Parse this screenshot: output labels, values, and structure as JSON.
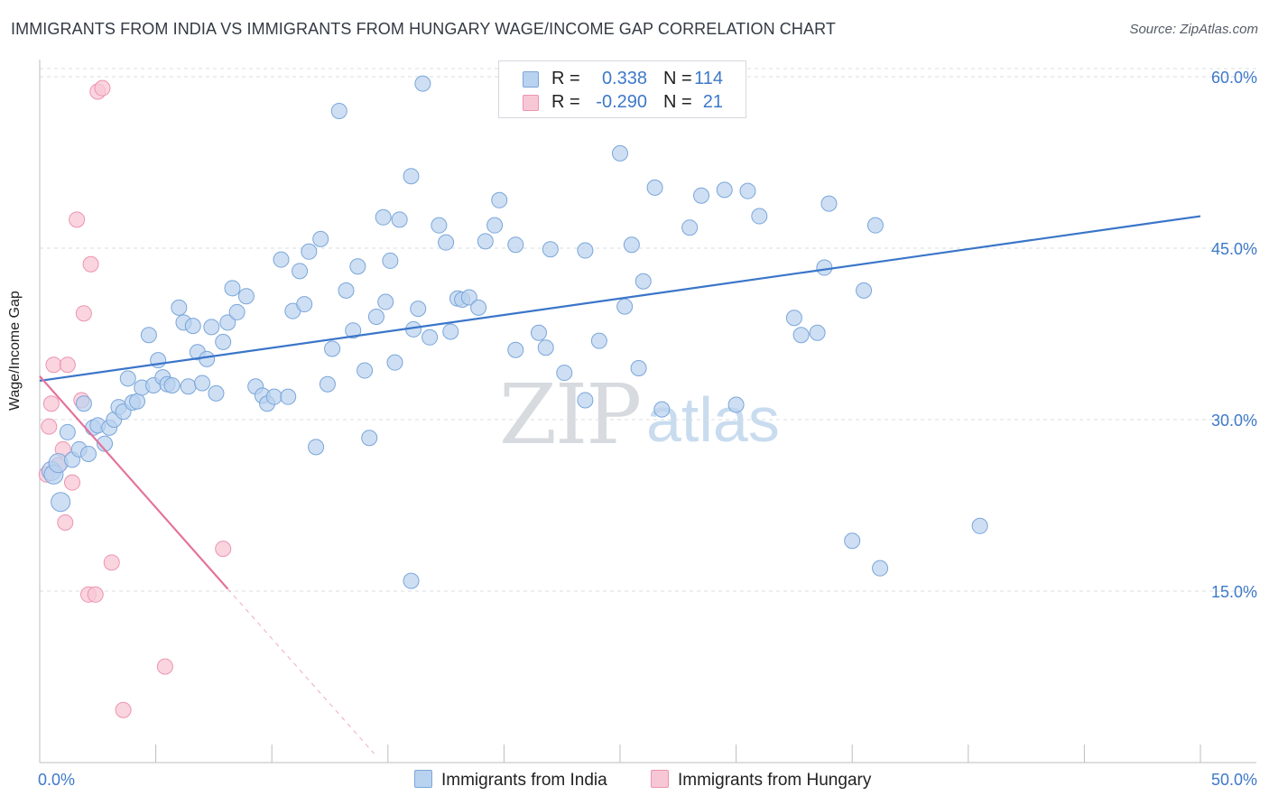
{
  "title": "IMMIGRANTS FROM INDIA VS IMMIGRANTS FROM HUNGARY WAGE/INCOME GAP CORRELATION CHART",
  "source": "Source: ZipAtlas.com",
  "watermark": {
    "zip": "ZIP",
    "atlas": "atlas"
  },
  "legend": {
    "india": {
      "r_label": "R =",
      "r_value": "0.338",
      "n_label": "N =",
      "n_value": "114"
    },
    "hungary": {
      "r_label": "R =",
      "r_value": "-0.290",
      "n_label": "N =",
      "n_value": "21"
    }
  },
  "colors": {
    "india_fill": "#b9d2f0",
    "india_stroke": "#7aa6d9",
    "india_line": "#3a75c9",
    "hungary_fill": "#f8c7d5",
    "hungary_stroke": "#ec94b0",
    "hungary_line": "#e4739b",
    "grid": "#d9dce0",
    "tick_label": "#3d79c9"
  },
  "chart_data": {
    "type": "scatter",
    "title": "IMMIGRANTS FROM INDIA VS IMMIGRANTS FROM HUNGARY WAGE/INCOME GAP CORRELATION CHART",
    "xlabel": "",
    "ylabel": "Wage/Income Gap",
    "xlim": [
      0,
      50
    ],
    "ylim": [
      0,
      61.5
    ],
    "x_tick_labels": [
      "0.0%",
      "50.0%"
    ],
    "y_ticks": [
      15,
      30,
      45,
      60
    ],
    "y_tick_labels": [
      "15.0%",
      "30.0%",
      "45.0%",
      "60.0%"
    ],
    "grid": true,
    "legend_position": "bottom",
    "series": [
      {
        "name": "Immigrants from India",
        "trend": {
          "x0": 0,
          "y0": 33.4,
          "x1": 50,
          "y1": 47.8
        },
        "points": [
          [
            0.5,
            25.5
          ],
          [
            0.6,
            25.2
          ],
          [
            0.8,
            26.2
          ],
          [
            0.9,
            22.8
          ],
          [
            1.2,
            28.9
          ],
          [
            1.4,
            26.5
          ],
          [
            1.7,
            27.4
          ],
          [
            1.9,
            31.4
          ],
          [
            2.1,
            27.0
          ],
          [
            2.3,
            29.3
          ],
          [
            2.5,
            29.5
          ],
          [
            2.8,
            27.9
          ],
          [
            3.0,
            29.3
          ],
          [
            3.2,
            30.0
          ],
          [
            3.4,
            31.1
          ],
          [
            3.6,
            30.7
          ],
          [
            3.8,
            33.6
          ],
          [
            4.0,
            31.5
          ],
          [
            4.2,
            31.6
          ],
          [
            4.4,
            32.8
          ],
          [
            4.7,
            37.4
          ],
          [
            4.9,
            33.0
          ],
          [
            5.1,
            35.2
          ],
          [
            5.3,
            33.7
          ],
          [
            5.5,
            33.1
          ],
          [
            5.7,
            33.0
          ],
          [
            6.0,
            39.8
          ],
          [
            6.2,
            38.5
          ],
          [
            6.4,
            32.9
          ],
          [
            6.6,
            38.2
          ],
          [
            6.8,
            35.9
          ],
          [
            7.0,
            33.2
          ],
          [
            7.2,
            35.3
          ],
          [
            7.4,
            38.1
          ],
          [
            7.6,
            32.3
          ],
          [
            7.9,
            36.8
          ],
          [
            8.1,
            38.5
          ],
          [
            8.3,
            41.5
          ],
          [
            8.5,
            39.4
          ],
          [
            8.9,
            40.8
          ],
          [
            9.3,
            32.9
          ],
          [
            9.6,
            32.1
          ],
          [
            9.8,
            31.4
          ],
          [
            10.1,
            32.0
          ],
          [
            10.4,
            44.0
          ],
          [
            10.7,
            32.0
          ],
          [
            10.9,
            39.5
          ],
          [
            11.2,
            43.0
          ],
          [
            11.4,
            40.1
          ],
          [
            11.6,
            44.7
          ],
          [
            11.9,
            27.6
          ],
          [
            12.1,
            45.8
          ],
          [
            12.4,
            33.1
          ],
          [
            12.6,
            36.2
          ],
          [
            12.9,
            57.0
          ],
          [
            13.2,
            41.3
          ],
          [
            13.5,
            37.8
          ],
          [
            13.7,
            43.4
          ],
          [
            14.0,
            34.3
          ],
          [
            14.2,
            28.4
          ],
          [
            14.5,
            39.0
          ],
          [
            14.8,
            47.7
          ],
          [
            14.9,
            40.3
          ],
          [
            15.1,
            43.9
          ],
          [
            15.3,
            35.0
          ],
          [
            15.5,
            47.5
          ],
          [
            16.0,
            51.3
          ],
          [
            16.1,
            37.9
          ],
          [
            16.3,
            39.7
          ],
          [
            16.5,
            59.4
          ],
          [
            16.8,
            37.2
          ],
          [
            17.2,
            47.0
          ],
          [
            17.5,
            45.5
          ],
          [
            17.7,
            37.7
          ],
          [
            18.0,
            40.6
          ],
          [
            18.2,
            40.5
          ],
          [
            18.5,
            40.7
          ],
          [
            18.9,
            39.8
          ],
          [
            19.2,
            45.6
          ],
          [
            19.6,
            47.0
          ],
          [
            19.8,
            49.2
          ],
          [
            20.5,
            45.3
          ],
          [
            20.5,
            36.1
          ],
          [
            21.5,
            37.6
          ],
          [
            21.8,
            36.3
          ],
          [
            22.0,
            44.9
          ],
          [
            22.6,
            34.1
          ],
          [
            23.5,
            31.7
          ],
          [
            23.5,
            44.8
          ],
          [
            24.1,
            36.9
          ],
          [
            25.0,
            53.3
          ],
          [
            25.2,
            39.9
          ],
          [
            25.5,
            45.3
          ],
          [
            25.8,
            34.5
          ],
          [
            26.0,
            42.1
          ],
          [
            26.5,
            50.3
          ],
          [
            26.8,
            30.9
          ],
          [
            28.0,
            46.8
          ],
          [
            28.5,
            49.6
          ],
          [
            29.5,
            50.1
          ],
          [
            30.0,
            31.3
          ],
          [
            30.5,
            50.0
          ],
          [
            31.0,
            47.8
          ],
          [
            32.5,
            38.9
          ],
          [
            33.5,
            37.6
          ],
          [
            33.8,
            43.3
          ],
          [
            34.0,
            48.9
          ],
          [
            35.0,
            19.4
          ],
          [
            35.5,
            41.3
          ],
          [
            36.0,
            47.0
          ],
          [
            36.2,
            17.0
          ],
          [
            40.5,
            20.7
          ],
          [
            16.0,
            15.9
          ],
          [
            32.8,
            37.4
          ]
        ]
      },
      {
        "name": "Immigrants from Hungary",
        "trend": {
          "x0": 0,
          "y0": 33.8,
          "x1": 8.1,
          "y1": 15.2
        },
        "trend_dashed_extension": {
          "x0": 8.1,
          "y0": 15.2,
          "x1": 14.4,
          "y1": 0.8
        },
        "points": [
          [
            0.3,
            25.2
          ],
          [
            0.4,
            29.4
          ],
          [
            0.5,
            31.4
          ],
          [
            0.6,
            34.8
          ],
          [
            0.8,
            26.0
          ],
          [
            1.0,
            27.4
          ],
          [
            1.1,
            21.0
          ],
          [
            1.2,
            34.8
          ],
          [
            1.4,
            24.5
          ],
          [
            1.6,
            47.5
          ],
          [
            1.8,
            31.7
          ],
          [
            1.9,
            39.3
          ],
          [
            2.1,
            14.7
          ],
          [
            2.2,
            43.6
          ],
          [
            2.4,
            14.7
          ],
          [
            2.5,
            58.7
          ],
          [
            2.7,
            59.0
          ],
          [
            3.1,
            17.5
          ],
          [
            3.6,
            4.6
          ],
          [
            5.4,
            8.4
          ],
          [
            7.9,
            18.7
          ]
        ]
      }
    ]
  }
}
